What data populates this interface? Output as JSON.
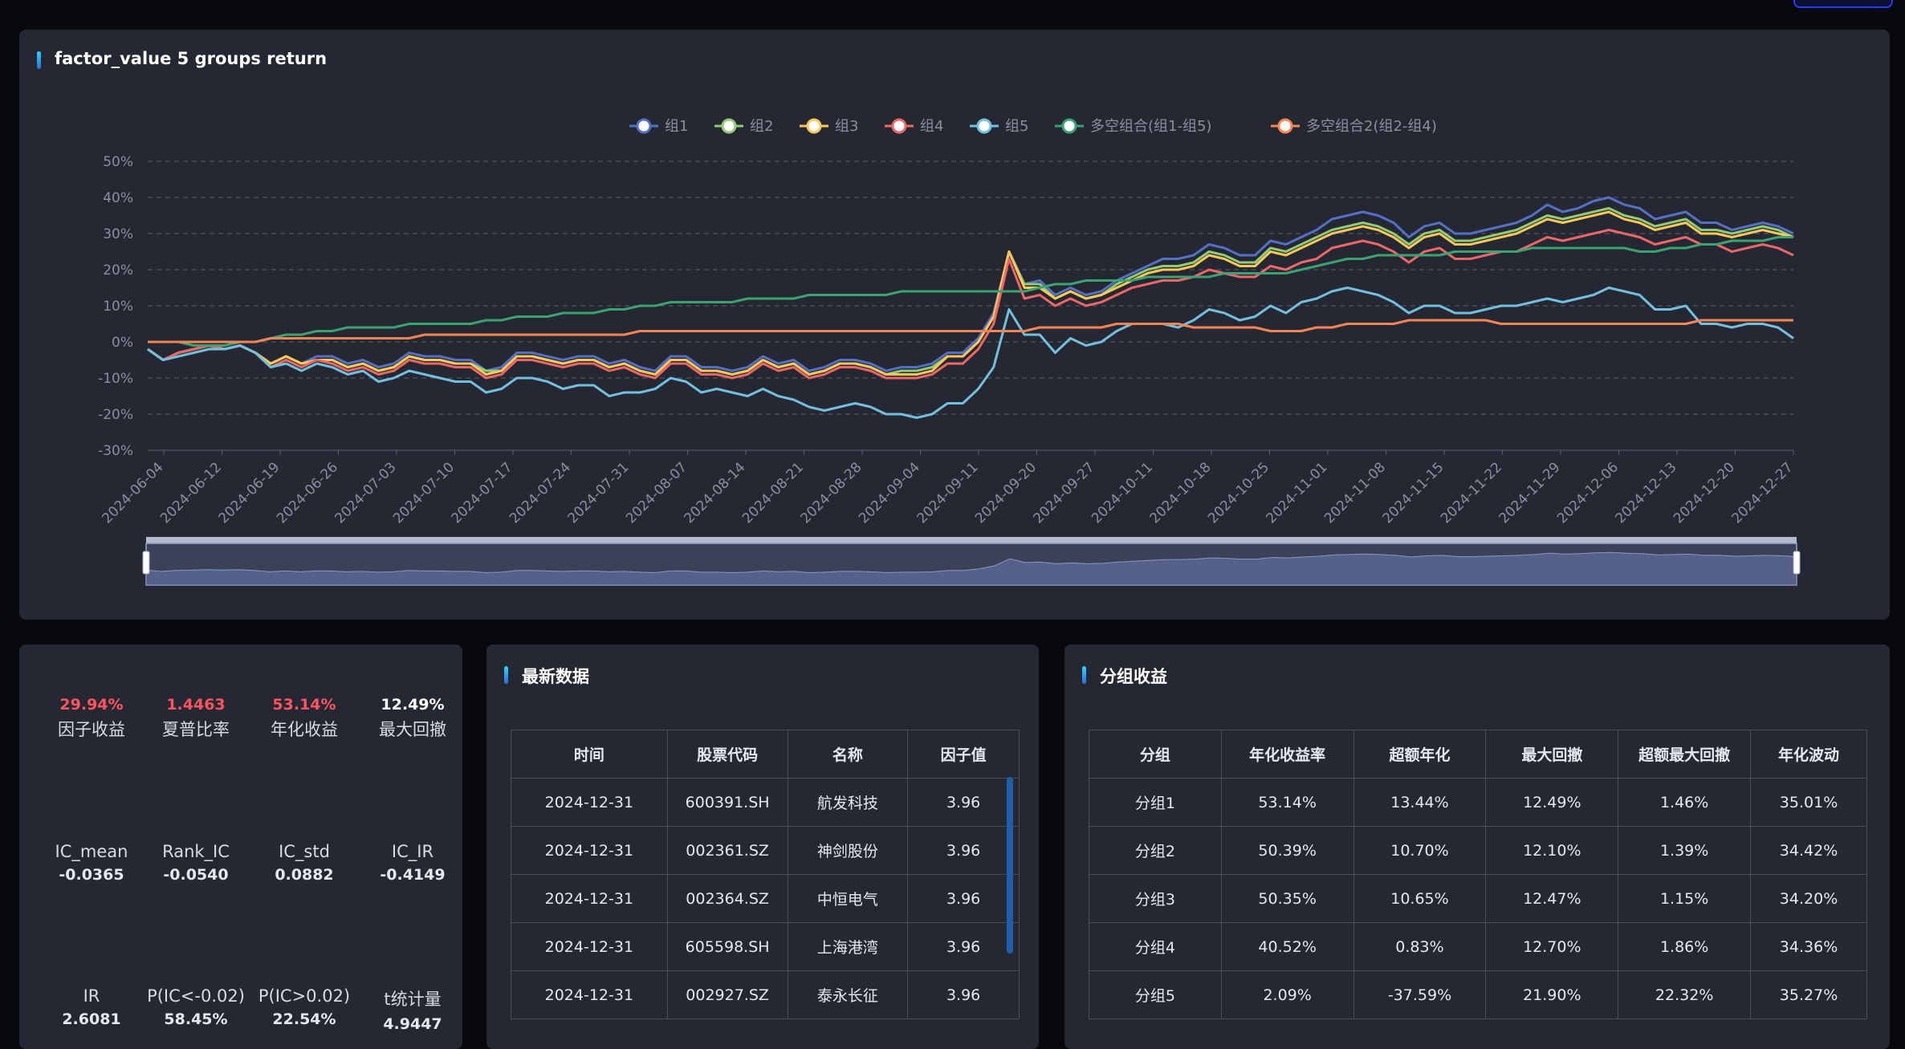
{
  "chart_panel": {
    "title": "factor_value 5 groups return"
  },
  "chart_data": {
    "type": "line",
    "title": "factor_value 5 groups return",
    "y_ticks": [
      "50%",
      "40%",
      "30%",
      "20%",
      "10%",
      "0%",
      "-10%",
      "-20%",
      "-30%"
    ],
    "ylim": [
      -30,
      50
    ],
    "x_ticks": [
      "2024-06-04",
      "2024-06-12",
      "2024-06-19",
      "2024-06-26",
      "2024-07-03",
      "2024-07-10",
      "2024-07-17",
      "2024-07-24",
      "2024-07-31",
      "2024-08-07",
      "2024-08-14",
      "2024-08-21",
      "2024-08-28",
      "2024-09-04",
      "2024-09-11",
      "2024-09-20",
      "2024-09-27",
      "2024-10-11",
      "2024-10-18",
      "2024-10-25",
      "2024-11-01",
      "2024-11-08",
      "2024-11-15",
      "2024-11-22",
      "2024-11-29",
      "2024-12-06",
      "2024-12-13",
      "2024-12-20",
      "2024-12-27"
    ],
    "legend_position": "top-center",
    "grid": true,
    "series": [
      {
        "name": "组1",
        "color": "#5470c6",
        "values": [
          -2,
          -5,
          -3,
          -2,
          -1,
          -2,
          -1,
          -3,
          -6,
          -4,
          -6,
          -4,
          -4,
          -6,
          -5,
          -7,
          -6,
          -3,
          -4,
          -4,
          -5,
          -5,
          -8,
          -7,
          -3,
          -3,
          -4,
          -5,
          -4,
          -4,
          -6,
          -5,
          -7,
          -8,
          -4,
          -4,
          -7,
          -7,
          -8,
          -7,
          -4,
          -6,
          -5,
          -8,
          -7,
          -5,
          -5,
          -6,
          -8,
          -7,
          -7,
          -6,
          -3,
          -3,
          1,
          8,
          25,
          16,
          17,
          13,
          15,
          13,
          14,
          17,
          19,
          21,
          23,
          23,
          24,
          27,
          26,
          24,
          24,
          28,
          27,
          29,
          31,
          34,
          35,
          36,
          35,
          33,
          29,
          32,
          33,
          30,
          30,
          31,
          32,
          33,
          35,
          38,
          36,
          37,
          39,
          40,
          38,
          37,
          34,
          35,
          36,
          33,
          33,
          31,
          32,
          33,
          32,
          30
        ]
      },
      {
        "name": "组2",
        "color": "#91cc75",
        "values": [
          -2,
          -5,
          -3,
          -2,
          -1,
          -2,
          -1,
          -3,
          -6,
          -4,
          -6,
          -5,
          -5,
          -7,
          -6,
          -8,
          -7,
          -4,
          -5,
          -5,
          -6,
          -6,
          -8,
          -8,
          -4,
          -4,
          -5,
          -6,
          -5,
          -5,
          -7,
          -6,
          -8,
          -9,
          -5,
          -5,
          -8,
          -8,
          -9,
          -8,
          -5,
          -7,
          -6,
          -9,
          -8,
          -6,
          -6,
          -7,
          -9,
          -8,
          -8,
          -7,
          -4,
          -4,
          0,
          7,
          25,
          16,
          16,
          12,
          14,
          12,
          13,
          16,
          18,
          20,
          21,
          21,
          22,
          25,
          24,
          22,
          22,
          26,
          25,
          27,
          29,
          31,
          32,
          33,
          32,
          30,
          27,
          30,
          31,
          28,
          28,
          29,
          30,
          31,
          33,
          35,
          34,
          35,
          36,
          37,
          35,
          34,
          32,
          33,
          34,
          31,
          31,
          30,
          31,
          32,
          31,
          29
        ]
      },
      {
        "name": "组3",
        "color": "#fac858",
        "values": [
          -2,
          -5,
          -3,
          -2,
          -1,
          -2,
          -1,
          -3,
          -6,
          -4,
          -6,
          -5,
          -5,
          -7,
          -6,
          -8,
          -7,
          -4,
          -5,
          -5,
          -6,
          -6,
          -9,
          -8,
          -4,
          -4,
          -5,
          -6,
          -5,
          -5,
          -7,
          -6,
          -8,
          -9,
          -5,
          -5,
          -8,
          -8,
          -9,
          -8,
          -5,
          -7,
          -6,
          -9,
          -8,
          -6,
          -6,
          -7,
          -9,
          -9,
          -9,
          -8,
          -4,
          -4,
          0,
          7,
          25,
          15,
          15,
          12,
          14,
          12,
          13,
          15,
          17,
          19,
          20,
          20,
          21,
          24,
          23,
          21,
          21,
          25,
          24,
          26,
          28,
          30,
          31,
          32,
          31,
          29,
          26,
          29,
          30,
          27,
          27,
          28,
          29,
          30,
          32,
          34,
          33,
          34,
          35,
          36,
          34,
          33,
          31,
          32,
          33,
          30,
          30,
          29,
          30,
          31,
          30,
          29
        ]
      },
      {
        "name": "组4",
        "color": "#ee6666",
        "values": [
          -2,
          -5,
          -3,
          -2,
          -1,
          -2,
          -1,
          -3,
          -7,
          -5,
          -7,
          -5,
          -6,
          -8,
          -7,
          -9,
          -8,
          -5,
          -6,
          -6,
          -7,
          -7,
          -10,
          -9,
          -5,
          -5,
          -6,
          -7,
          -6,
          -6,
          -8,
          -7,
          -9,
          -10,
          -6,
          -6,
          -9,
          -9,
          -10,
          -9,
          -6,
          -8,
          -7,
          -10,
          -9,
          -7,
          -7,
          -8,
          -10,
          -10,
          -10,
          -9,
          -6,
          -6,
          -2,
          5,
          23,
          12,
          13,
          10,
          12,
          10,
          11,
          13,
          15,
          16,
          17,
          17,
          18,
          20,
          19,
          18,
          18,
          21,
          20,
          22,
          23,
          26,
          27,
          28,
          27,
          25,
          22,
          25,
          26,
          23,
          23,
          24,
          25,
          25,
          27,
          29,
          28,
          29,
          30,
          31,
          30,
          29,
          27,
          28,
          29,
          27,
          27,
          25,
          26,
          27,
          26,
          24
        ]
      },
      {
        "name": "组5",
        "color": "#73c0de",
        "values": [
          -2,
          -5,
          -4,
          -3,
          -2,
          -2,
          -1,
          -3,
          -7,
          -6,
          -8,
          -6,
          -7,
          -9,
          -8,
          -11,
          -10,
          -8,
          -9,
          -10,
          -11,
          -11,
          -14,
          -13,
          -10,
          -10,
          -11,
          -13,
          -12,
          -12,
          -15,
          -14,
          -14,
          -13,
          -10,
          -11,
          -14,
          -13,
          -14,
          -15,
          -13,
          -15,
          -16,
          -18,
          -19,
          -18,
          -17,
          -18,
          -20,
          -20,
          -21,
          -20,
          -17,
          -17,
          -13,
          -7,
          9,
          2,
          2,
          -3,
          1,
          -1,
          0,
          3,
          5,
          5,
          5,
          4,
          6,
          9,
          8,
          6,
          7,
          10,
          8,
          11,
          12,
          14,
          15,
          14,
          13,
          11,
          8,
          10,
          10,
          8,
          8,
          9,
          10,
          10,
          11,
          12,
          11,
          12,
          13,
          15,
          14,
          13,
          9,
          9,
          10,
          5,
          5,
          4,
          5,
          5,
          4,
          1
        ]
      },
      {
        "name": "多空组合(组1-组5)",
        "color": "#3ba272",
        "values": [
          0,
          0,
          0,
          -1,
          -1,
          -1,
          0,
          0,
          1,
          2,
          2,
          3,
          3,
          4,
          4,
          4,
          4,
          5,
          5,
          5,
          5,
          5,
          6,
          6,
          7,
          7,
          7,
          8,
          8,
          8,
          9,
          9,
          10,
          10,
          11,
          11,
          11,
          11,
          11,
          12,
          12,
          12,
          12,
          13,
          13,
          13,
          13,
          13,
          13,
          14,
          14,
          14,
          14,
          14,
          14,
          14,
          14,
          14,
          15,
          16,
          16,
          17,
          17,
          17,
          17,
          18,
          18,
          18,
          18,
          18,
          19,
          19,
          19,
          19,
          19,
          20,
          21,
          22,
          23,
          23,
          24,
          24,
          24,
          24,
          24,
          25,
          25,
          25,
          25,
          25,
          26,
          26,
          26,
          26,
          26,
          26,
          26,
          25,
          25,
          26,
          26,
          27,
          27,
          28,
          28,
          28,
          29,
          29
        ]
      },
      {
        "name": "多空组合2(组2-组4)",
        "color": "#fc8452",
        "values": [
          0,
          0,
          0,
          0,
          0,
          0,
          0,
          0,
          1,
          1,
          1,
          1,
          1,
          1,
          1,
          1,
          1,
          1,
          2,
          2,
          2,
          2,
          2,
          2,
          2,
          2,
          2,
          2,
          2,
          2,
          2,
          2,
          3,
          3,
          3,
          3,
          3,
          3,
          3,
          3,
          3,
          3,
          3,
          3,
          3,
          3,
          3,
          3,
          3,
          3,
          3,
          3,
          3,
          3,
          3,
          3,
          3,
          3,
          4,
          4,
          4,
          4,
          4,
          5,
          5,
          5,
          5,
          5,
          4,
          4,
          4,
          4,
          4,
          3,
          3,
          3,
          4,
          4,
          5,
          5,
          5,
          5,
          6,
          6,
          6,
          6,
          6,
          6,
          5,
          5,
          5,
          5,
          5,
          5,
          5,
          5,
          5,
          5,
          5,
          5,
          5,
          6,
          6,
          6,
          6,
          6,
          6,
          6
        ]
      }
    ]
  },
  "metrics": {
    "row1": [
      {
        "value": "29.94%",
        "label": "因子收益"
      },
      {
        "value": "1.4463",
        "label": "夏普比率"
      },
      {
        "value": "53.14%",
        "label": "年化收益"
      },
      {
        "value": "12.49%",
        "label": "最大回撤"
      }
    ],
    "row2": [
      {
        "label": "IC_mean",
        "value": "-0.0365"
      },
      {
        "label": "Rank_IC",
        "value": "-0.0540"
      },
      {
        "label": "IC_std",
        "value": "0.0882"
      },
      {
        "label": "IC_IR",
        "value": "-0.4149"
      }
    ],
    "row3": [
      {
        "label": "IR",
        "value": "2.6081"
      },
      {
        "label": "P(IC<-0.02)",
        "value": "58.45%"
      },
      {
        "label": "P(IC>0.02)",
        "value": "22.54%"
      },
      {
        "label": "t统计量",
        "value": "4.9447"
      }
    ]
  },
  "latest": {
    "title": "最新数据",
    "headers": [
      "时间",
      "股票代码",
      "名称",
      "因子值"
    ],
    "rows": [
      [
        "2024-12-31",
        "600391.SH",
        "航发科技",
        "3.96"
      ],
      [
        "2024-12-31",
        "002361.SZ",
        "神剑股份",
        "3.96"
      ],
      [
        "2024-12-31",
        "002364.SZ",
        "中恒电气",
        "3.96"
      ],
      [
        "2024-12-31",
        "605598.SH",
        "上海港湾",
        "3.96"
      ],
      [
        "2024-12-31",
        "002927.SZ",
        "泰永长征",
        "3.96"
      ]
    ]
  },
  "groups": {
    "title": "分组收益",
    "headers": [
      "分组",
      "年化收益率",
      "超额年化",
      "最大回撤",
      "超额最大回撤",
      "年化波动"
    ],
    "rows": [
      [
        "分组1",
        "53.14%",
        "13.44%",
        "12.49%",
        "1.46%",
        "35.01%"
      ],
      [
        "分组2",
        "50.39%",
        "10.70%",
        "12.10%",
        "1.39%",
        "34.42%"
      ],
      [
        "分组3",
        "50.35%",
        "10.65%",
        "12.47%",
        "1.15%",
        "34.20%"
      ],
      [
        "分组4",
        "40.52%",
        "0.83%",
        "12.70%",
        "1.86%",
        "34.36%"
      ],
      [
        "分组5",
        "2.09%",
        "-37.59%",
        "21.90%",
        "22.32%",
        "35.27%"
      ]
    ]
  }
}
